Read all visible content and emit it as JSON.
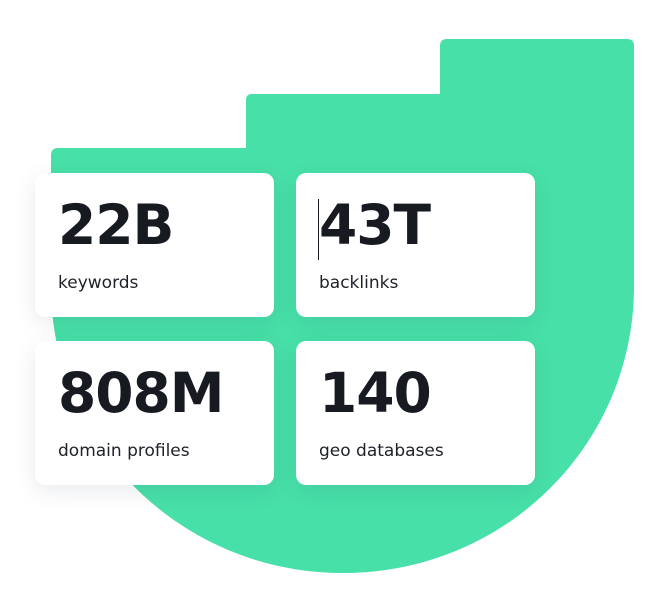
{
  "colors": {
    "accent_green": "#47e0a8",
    "card_background": "#ffffff",
    "text_primary": "#181a22"
  },
  "stats": [
    {
      "value": "22B",
      "label": "keywords"
    },
    {
      "value": "43T",
      "label": "backlinks"
    },
    {
      "value": "808M",
      "label": "domain profiles"
    },
    {
      "value": "140",
      "label": "geo databases"
    }
  ]
}
